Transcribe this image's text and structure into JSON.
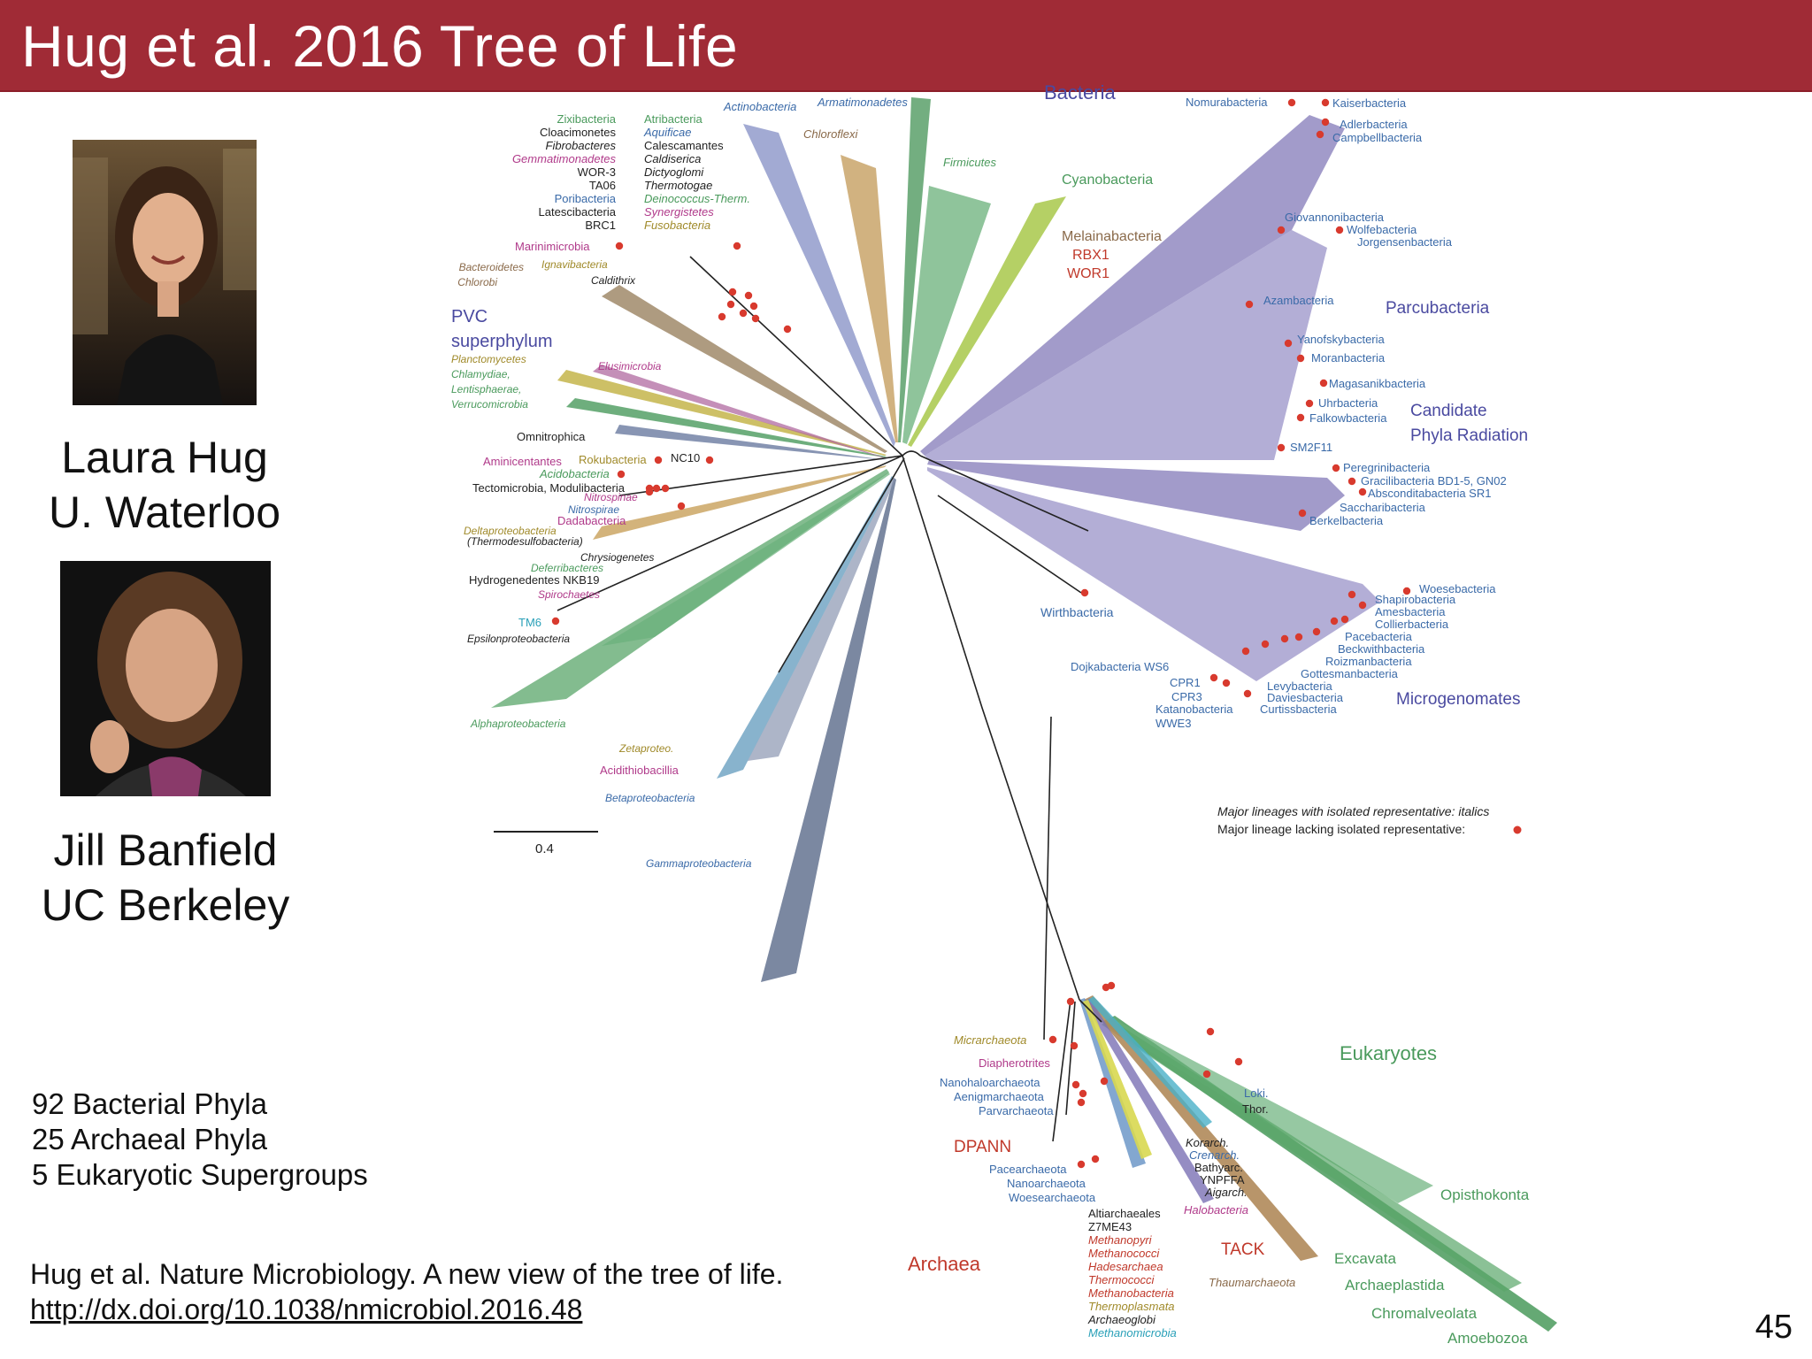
{
  "title": "Hug et al. 2016 Tree of Life",
  "people": [
    {
      "name": "Laura Hug",
      "affiliation": "U. Waterloo"
    },
    {
      "name": "Jill Banfield",
      "affiliation": "UC Berkeley"
    }
  ],
  "stats": [
    "92 Bacterial Phyla",
    "25 Archaeal Phyla",
    "5 Eukaryotic Supergroups"
  ],
  "reference": {
    "citation": "Hug et al. Nature Microbiology. A new view of the tree of life.",
    "link": "http://dx.doi.org/10.1038/nmicrobiol.2016.48"
  },
  "page_number": "45",
  "tree": {
    "colors": {
      "purple": "#6a5aa6",
      "green": "#4a9a5c",
      "gold": "#a08a2a",
      "red": "#c0392b",
      "blue": "#3a6aa8",
      "brown": "#8a6a4a",
      "teal": "#2aa0b8",
      "magenta": "#b03a8a",
      "dark": "#222222",
      "dot": "#d83a2e"
    },
    "scale_bar_label": "0.4",
    "domain_labels": {
      "bacteria": "Bacteria",
      "archaea": "Archaea",
      "eukaryotes": "Eukaryotes",
      "parcubacteria": "Parcubacteria",
      "cpr": [
        "Candidate",
        "Phyla Radiation"
      ],
      "microgenomates": "Microgenomates",
      "pvc": [
        "PVC",
        "superphylum"
      ],
      "dpann": "DPANN",
      "tack": "TACK"
    },
    "legend": {
      "italics": "Major lineages with isolated representative: italics",
      "dot": "Major lineage lacking isolated representative:"
    },
    "left_top_block": {
      "col1": [
        "Zixibacteria",
        "Cloacimonetes",
        "Fibrobacteres",
        "Gemmatimonadetes",
        "WOR-3",
        "TA06",
        "Poribacteria",
        "Latescibacteria",
        "BRC1"
      ],
      "col2": [
        "Atribacteria",
        "Aquificae",
        "Calescamantes",
        "Caldiserica",
        "Dictyoglomi",
        "Thermotogae",
        "Deinococcus-Therm.",
        "Synergistetes",
        "Fusobacteria"
      ]
    },
    "labels_top": [
      "Actinobacteria",
      "Armatimonadetes",
      "Chloroflexi",
      "Firmicutes",
      "Cyanobacteria",
      "Melainabacteria",
      "RBX1",
      "WOR1",
      "Nomurabacteria"
    ],
    "labels_left": [
      "Marinimicrobia",
      "Bacteroidetes",
      "Ignavibacteria",
      "Chlorobi",
      "Caldithrix",
      "Planctomycetes",
      "Chlamydiae,",
      "Lentisphaerae,",
      "Verrucomicrobia",
      "Elusimicrobia",
      "Omnitrophica",
      "Aminicentantes",
      "Rokubacteria",
      "NC10",
      "Acidobacteria",
      "Tectomicrobia, Modulibacteria",
      "Nitrospinae",
      "Nitrospirae",
      "Dadabacteria",
      "Deltaproteobacteria",
      "(Thermodesulfobacteria)",
      "Chrysiogenetes",
      "Deferribacteres",
      "Hydrogenedentes NKB19",
      "Spirochaetes",
      "TM6",
      "Epsilonproteobacteria",
      "Alphaproteobacteria",
      "Zetaproteo.",
      "Acidithiobacillia",
      "Betaproteobacteria",
      "Gammaproteobacteria"
    ],
    "labels_cpr": [
      "Kaiserbacteria",
      "Adlerbacteria",
      "Campbellbacteria",
      "Giovannonibacteria",
      "Wolfebacteria",
      "Jorgensenbacteria",
      "Azambacteria",
      "Yanofskybacteria",
      "Moranbacteria",
      "Magasanikbacteria",
      "Uhrbacteria",
      "Falkowbacteria",
      "SM2F11",
      "Peregrinibacteria",
      "Gracilibacteria BD1-5, GN02",
      "Absconditabacteria SR1",
      "Saccharibacteria",
      "Berkelbacteria",
      "Woesebacteria",
      "Shapirobacteria",
      "Amesbacteria",
      "Collierbacteria",
      "Pacebacteria",
      "Beckwithbacteria",
      "Roizmanbacteria",
      "Gottesmanbacteria",
      "Levybacteria",
      "Daviesbacteria",
      "Curtissbacteria",
      "Wirthbacteria",
      "Dojkabacteria WS6",
      "CPR1",
      "CPR3",
      "Katanobacteria",
      "WWE3"
    ],
    "labels_archaea": [
      "Micrarchaeota",
      "Diapherotrites",
      "Nanohaloarchaeota",
      "Aenigmarchaeota",
      "Parvarchaeota",
      "Pacearchaeota",
      "Nanoarchaeota",
      "Woesearchaeota",
      "Altiarchaeales",
      "Z7ME43",
      "Methanopyri",
      "Methanococci",
      "Hadesarchaea",
      "Thermococci",
      "Methanobacteria",
      "Thermoplasmata",
      "Archaeoglobi",
      "Methanomicrobia",
      "Korarch.",
      "Crenarch.",
      "Bathyarc.",
      "YNPFFA",
      "Aigarch.",
      "Halobacteria",
      "Thaumarchaeota",
      "Loki.",
      "Thor."
    ],
    "labels_euk": [
      "Opisthokonta",
      "Excavata",
      "Archaeplastida",
      "Chromalveolata",
      "Amoebozoa"
    ]
  }
}
